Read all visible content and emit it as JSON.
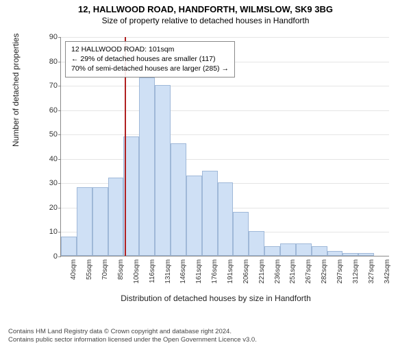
{
  "title": "12, HALLWOOD ROAD, HANDFORTH, WILMSLOW, SK9 3BG",
  "subtitle": "Size of property relative to detached houses in Handforth",
  "chart": {
    "type": "histogram",
    "ylabel": "Number of detached properties",
    "xlabel": "Distribution of detached houses by size in Handforth",
    "ylim": [
      0,
      90
    ],
    "ytick_step": 10,
    "background_color": "#ffffff",
    "grid_color": "#e5e5e5",
    "axis_color": "#888888",
    "bar_fill": "#cfe0f5",
    "bar_border": "#9fb8d8",
    "marker_color": "#b02020",
    "marker_value": 101,
    "x_start": 40,
    "x_step": 15,
    "x_display_step": 15,
    "categories": [
      "40sqm",
      "55sqm",
      "70sqm",
      "85sqm",
      "100sqm",
      "116sqm",
      "131sqm",
      "146sqm",
      "161sqm",
      "176sqm",
      "191sqm",
      "206sqm",
      "221sqm",
      "236sqm",
      "251sqm",
      "267sqm",
      "282sqm",
      "297sqm",
      "312sqm",
      "327sqm",
      "342sqm"
    ],
    "values": [
      8,
      28,
      28,
      32,
      49,
      73,
      70,
      46,
      33,
      35,
      30,
      18,
      10,
      4,
      5,
      5,
      4,
      2,
      1,
      1,
      0
    ],
    "info_box": {
      "line1": "12 HALLWOOD ROAD: 101sqm",
      "line2": "← 29% of detached houses are smaller (117)",
      "line3": "70% of semi-detached houses are larger (285) →"
    }
  },
  "footer": {
    "line1": "Contains HM Land Registry data © Crown copyright and database right 2024.",
    "line2": "Contains public sector information licensed under the Open Government Licence v3.0."
  }
}
